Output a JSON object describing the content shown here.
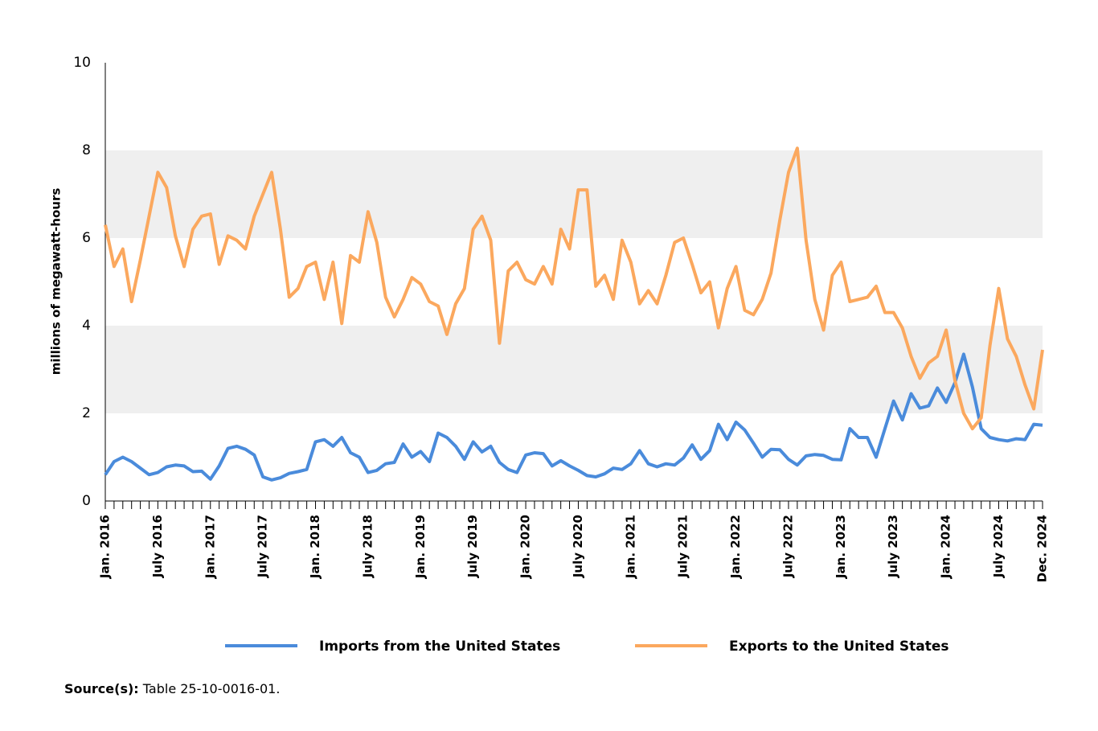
{
  "chart_data": {
    "type": "line",
    "y_label": "millions of megawatt-hours",
    "categories": [
      "Jan. 2016",
      null,
      null,
      null,
      null,
      null,
      "July 2016",
      null,
      null,
      null,
      null,
      null,
      "Jan. 2017",
      null,
      null,
      null,
      null,
      null,
      "July 2017",
      null,
      null,
      null,
      null,
      null,
      "Jan. 2018",
      null,
      null,
      null,
      null,
      null,
      "July 2018",
      null,
      null,
      null,
      null,
      null,
      "Jan. 2019",
      null,
      null,
      null,
      null,
      null,
      "July 2019",
      null,
      null,
      null,
      null,
      null,
      "Jan. 2020",
      null,
      null,
      null,
      null,
      null,
      "July 2020",
      null,
      null,
      null,
      null,
      null,
      "Jan. 2021",
      null,
      null,
      null,
      null,
      null,
      "July 2021",
      null,
      null,
      null,
      null,
      null,
      "Jan. 2022",
      null,
      null,
      null,
      null,
      null,
      "July 2022",
      null,
      null,
      null,
      null,
      null,
      "Jan. 2023",
      null,
      null,
      null,
      null,
      null,
      "July 2023",
      null,
      null,
      null,
      null,
      null,
      "Jan. 2024",
      null,
      null,
      null,
      null,
      null,
      "July 2024",
      null,
      null,
      null,
      null,
      "Dec. 2024"
    ],
    "series": [
      {
        "name": "Imports from the United States",
        "color": "#4a8bdb",
        "values": [
          0.6,
          0.9,
          1.0,
          0.9,
          0.75,
          0.6,
          0.65,
          0.78,
          0.82,
          0.8,
          0.67,
          0.68,
          0.5,
          0.8,
          1.2,
          1.25,
          1.18,
          1.05,
          0.55,
          0.48,
          0.53,
          0.63,
          0.67,
          0.72,
          1.35,
          1.4,
          1.25,
          1.45,
          1.1,
          1.0,
          0.65,
          0.7,
          0.85,
          0.88,
          1.3,
          1.0,
          1.13,
          0.9,
          1.55,
          1.45,
          1.25,
          0.95,
          1.35,
          1.12,
          1.25,
          0.88,
          0.72,
          0.65,
          1.05,
          1.1,
          1.08,
          0.8,
          0.92,
          0.8,
          0.7,
          0.58,
          0.55,
          0.62,
          0.75,
          0.72,
          0.85,
          1.15,
          0.85,
          0.78,
          0.85,
          0.82,
          0.98,
          1.28,
          0.95,
          1.15,
          1.75,
          1.4,
          1.8,
          1.62,
          1.32,
          1.0,
          1.18,
          1.17,
          0.95,
          0.82,
          1.03,
          1.06,
          1.04,
          0.95,
          0.94,
          1.65,
          1.45,
          1.45,
          1.0,
          1.65,
          2.28,
          1.85,
          2.45,
          2.12,
          2.17,
          2.58,
          2.25,
          2.7,
          3.35,
          2.6,
          1.65,
          1.45,
          1.4,
          1.37,
          1.42,
          1.4,
          1.75,
          1.73
        ]
      },
      {
        "name": "Exports to the United States",
        "color": "#fba85e",
        "values": [
          6.3,
          5.35,
          5.75,
          4.55,
          5.5,
          6.5,
          7.5,
          7.15,
          6.05,
          5.35,
          6.2,
          6.5,
          6.55,
          5.4,
          6.05,
          5.95,
          5.75,
          6.5,
          7.0,
          7.5,
          6.2,
          4.65,
          4.85,
          5.35,
          5.45,
          4.6,
          5.45,
          4.05,
          5.6,
          5.45,
          6.6,
          5.9,
          4.65,
          4.2,
          4.6,
          5.1,
          4.95,
          4.55,
          4.45,
          3.8,
          4.5,
          4.85,
          6.2,
          6.5,
          5.95,
          3.6,
          5.25,
          5.45,
          5.05,
          4.95,
          5.35,
          4.95,
          6.2,
          5.75,
          7.1,
          7.1,
          4.9,
          5.15,
          4.6,
          5.95,
          5.45,
          4.5,
          4.8,
          4.5,
          5.15,
          5.9,
          6.0,
          5.4,
          4.75,
          5.0,
          3.95,
          4.85,
          5.35,
          4.35,
          4.25,
          4.6,
          5.2,
          6.4,
          7.5,
          8.05,
          5.95,
          4.6,
          3.9,
          5.15,
          5.45,
          4.55,
          4.6,
          4.65,
          4.9,
          4.3,
          4.3,
          3.95,
          3.3,
          2.8,
          3.15,
          3.3,
          3.9,
          2.75,
          2.0,
          1.65,
          1.9,
          3.55,
          4.85,
          3.7,
          3.3,
          2.65,
          2.1,
          3.45
        ]
      }
    ],
    "ylim": [
      0,
      10
    ],
    "yticks": [
      0,
      2,
      4,
      6,
      8,
      10
    ],
    "grid": "alternating-bands",
    "legend": "bottom",
    "source_label": "Source(s):",
    "source": "Table 25-10-0016-01."
  }
}
